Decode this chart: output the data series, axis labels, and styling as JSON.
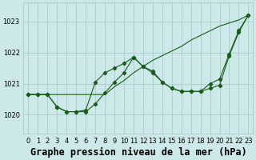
{
  "title": "Graphe pression niveau de la mer (hPa)",
  "xlabel_ticks": [
    "0",
    "1",
    "2",
    "3",
    "4",
    "5",
    "6",
    "7",
    "8",
    "9",
    "10",
    "11",
    "12",
    "13",
    "14",
    "15",
    "16",
    "17",
    "18",
    "19",
    "20",
    "21",
    "22",
    "23"
  ],
  "yticks": [
    1020,
    1021,
    1022,
    1023
  ],
  "ylim": [
    1019.4,
    1023.6
  ],
  "xlim": [
    -0.5,
    23.5
  ],
  "bg_color": "#cce8e8",
  "grid_color": "#aacccc",
  "line_color": "#1a5c1a",
  "line1_x": [
    0,
    1,
    2,
    3,
    4,
    5,
    6,
    7,
    8,
    9,
    10,
    11,
    12,
    13,
    14,
    15,
    16,
    17,
    18,
    19,
    20,
    21,
    22,
    23
  ],
  "line1_y": [
    1020.65,
    1020.65,
    1020.65,
    1020.65,
    1020.65,
    1020.65,
    1020.65,
    1020.65,
    1020.65,
    1020.9,
    1021.1,
    1021.35,
    1021.55,
    1021.75,
    1021.9,
    1022.05,
    1022.2,
    1022.4,
    1022.55,
    1022.7,
    1022.85,
    1022.95,
    1023.05,
    1023.2
  ],
  "line2_x": [
    0,
    1,
    2,
    3,
    4,
    5,
    6,
    7,
    8,
    9,
    10,
    11,
    12,
    13,
    14,
    15,
    16,
    17,
    18,
    19,
    20,
    21,
    22,
    23
  ],
  "line2_y": [
    1020.65,
    1020.65,
    1020.65,
    1020.25,
    1020.1,
    1020.1,
    1020.1,
    1020.35,
    1020.7,
    1021.05,
    1021.35,
    1021.85,
    1021.55,
    1021.4,
    1021.05,
    1020.85,
    1020.75,
    1020.75,
    1020.75,
    1020.85,
    1020.95,
    1021.9,
    1022.65,
    1023.2
  ],
  "line3_x": [
    0,
    1,
    2,
    3,
    4,
    5,
    6,
    7,
    8,
    9,
    10,
    11,
    12,
    13,
    14,
    15,
    16,
    17,
    18,
    19,
    20,
    21,
    22,
    23
  ],
  "line3_y": [
    1020.65,
    1020.65,
    1020.65,
    1020.25,
    1020.1,
    1020.1,
    1020.15,
    1021.05,
    1021.35,
    1021.5,
    1021.65,
    1021.85,
    1021.55,
    1021.35,
    1021.05,
    1020.85,
    1020.75,
    1020.75,
    1020.75,
    1021.0,
    1021.15,
    1021.95,
    1022.7,
    1023.2
  ],
  "title_fontsize": 8.5,
  "tick_fontsize": 6.0,
  "marker": "D",
  "marker_size": 2.2,
  "line1_no_marker": true
}
